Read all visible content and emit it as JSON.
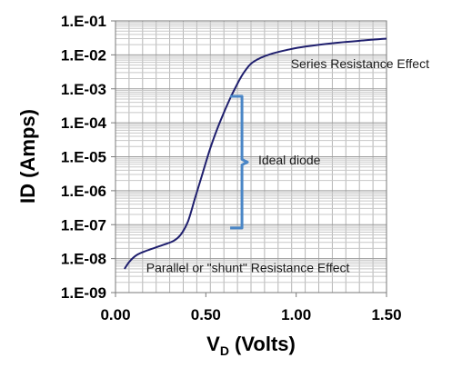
{
  "chart_data": {
    "type": "line",
    "title": "",
    "xlabel_main": "V",
    "xlabel_sub": "D",
    "xlabel_rest": " (Volts)",
    "ylabel": "ID (Amps)",
    "x_scale": "linear",
    "y_scale": "log",
    "xlim": [
      0,
      1.5
    ],
    "ylim": [
      1e-09,
      0.1
    ],
    "grid": true,
    "x_ticks": [
      {
        "value": 0.0,
        "label": "0.00"
      },
      {
        "value": 0.5,
        "label": "0.50"
      },
      {
        "value": 1.0,
        "label": "1.00"
      },
      {
        "value": 1.5,
        "label": "1.50"
      }
    ],
    "y_ticks": [
      {
        "value": 1e-09,
        "label": "1.E-09"
      },
      {
        "value": 1e-08,
        "label": "1.E-08"
      },
      {
        "value": 1e-07,
        "label": "1.E-07"
      },
      {
        "value": 1e-06,
        "label": "1.E-06"
      },
      {
        "value": 1e-05,
        "label": "1.E-05"
      },
      {
        "value": 0.0001,
        "label": "1.E-04"
      },
      {
        "value": 0.001,
        "label": "1.E-03"
      },
      {
        "value": 0.01,
        "label": "1.E-02"
      },
      {
        "value": 0.1,
        "label": "1.E-01"
      }
    ],
    "series": [
      {
        "color": "#1f1f6e",
        "x": [
          0.05,
          0.08,
          0.12,
          0.17,
          0.22,
          0.27,
          0.32,
          0.36,
          0.4,
          0.44,
          0.48,
          0.52,
          0.56,
          0.6,
          0.64,
          0.68,
          0.71,
          0.75,
          0.8,
          0.87,
          0.95,
          1.05,
          1.2,
          1.35,
          1.5
        ],
        "y": [
          5e-09,
          8.5e-09,
          1.3e-08,
          1.7e-08,
          2.1e-08,
          2.6e-08,
          3.3e-08,
          5e-08,
          1.2e-07,
          6e-07,
          3e-06,
          1.5e-05,
          6e-05,
          0.0002,
          0.0006,
          0.0016,
          0.003,
          0.0055,
          0.008,
          0.011,
          0.014,
          0.0175,
          0.022,
          0.026,
          0.03
        ]
      }
    ],
    "annotations": [
      {
        "text": "Series Resistance Effect",
        "x": 0.97,
        "y": 0.004
      },
      {
        "text": "Ideal diode",
        "x": 0.79,
        "y": 6e-06
      },
      {
        "text": "Parallel or \"shunt\" Resistance Effect",
        "x": 0.17,
        "y": 4e-09
      }
    ],
    "bracket": {
      "x": 0.7,
      "y_top": 0.0006,
      "y_bottom": 8e-08,
      "color": "#4a86c6"
    }
  }
}
